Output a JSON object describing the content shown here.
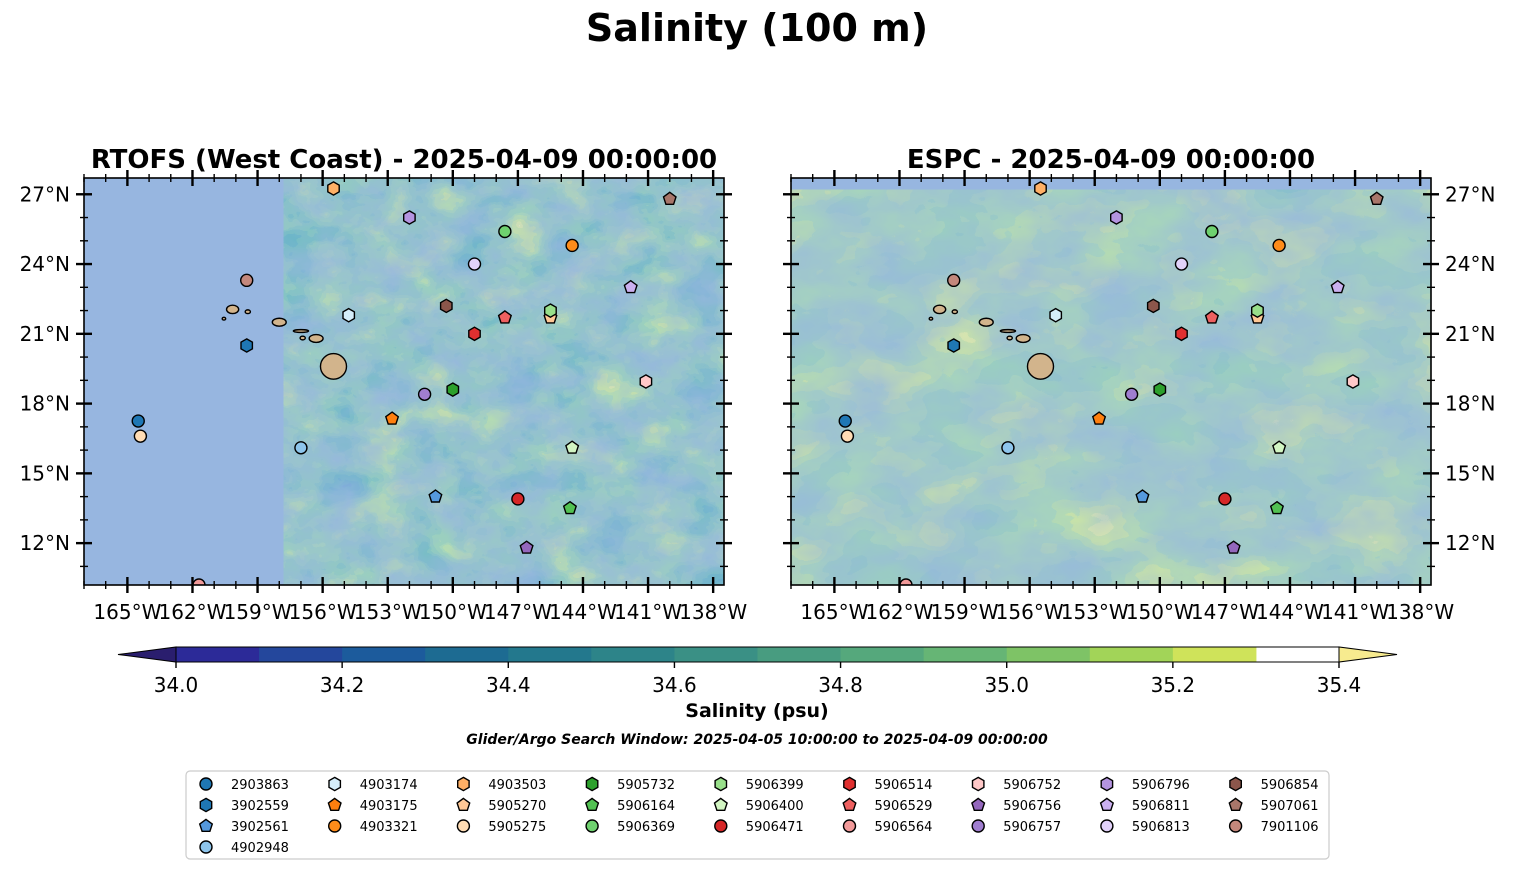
{
  "suptitle": "Salinity (100 m)",
  "search_window": "Glider/Argo Search Window: 2025-04-05 10:00:00 to 2025-04-09 00:00:00",
  "colorbar_label": "Salinity (psu)",
  "colors": {
    "land_mask": "#97b6e0",
    "island": "#d2b48c",
    "colormap": [
      "#2a1e6e",
      "#2c2a98",
      "#24479c",
      "#1c5b9c",
      "#1d6b92",
      "#23788d",
      "#2d8489",
      "#3a9085",
      "#489c80",
      "#55a87c",
      "#66b575",
      "#7ec366",
      "#a2d458",
      "#cfe35a",
      "#f7eb8f"
    ]
  },
  "chart_data": [
    {
      "type": "map",
      "title": "RTOFS (West Coast) - 2025-04-09 00:00:00",
      "variable": "Salinity (psu)",
      "xlim": [
        -167,
        -137.5
      ],
      "ylim": [
        10.2,
        27.7
      ],
      "x_ticks": [
        "165°W",
        "162°W",
        "159°W",
        "156°W",
        "153°W",
        "150°W",
        "147°W",
        "144°W",
        "141°W",
        "138°W"
      ],
      "x_tick_values": [
        -165,
        -162,
        -159,
        -156,
        -153,
        -150,
        -147,
        -144,
        -141,
        -138
      ],
      "y_ticks": [
        "12°N",
        "15°N",
        "18°N",
        "21°N",
        "24°N",
        "27°N"
      ],
      "y_tick_values": [
        12,
        15,
        18,
        21,
        24,
        27
      ],
      "y_tick_side": "left",
      "model_data_west_edge_lon": -157.8,
      "mean_salinity": 34.7
    },
    {
      "type": "map",
      "title": "ESPC - 2025-04-09 00:00:00",
      "variable": "Salinity (psu)",
      "xlim": [
        -167,
        -137.5
      ],
      "ylim": [
        10.2,
        27.7
      ],
      "x_ticks": [
        "165°W",
        "162°W",
        "159°W",
        "156°W",
        "153°W",
        "150°W",
        "147°W",
        "144°W",
        "141°W",
        "138°W"
      ],
      "x_tick_values": [
        -165,
        -162,
        -159,
        -156,
        -153,
        -150,
        -147,
        -144,
        -141,
        -138
      ],
      "y_ticks": [
        "12°N",
        "15°N",
        "18°N",
        "21°N",
        "24°N",
        "27°N"
      ],
      "y_tick_values": [
        12,
        15,
        18,
        21,
        24,
        27
      ],
      "y_tick_side": "right",
      "model_data_north_edge_lat": 27.2,
      "mean_salinity": 34.9
    }
  ],
  "colorbar": {
    "vmin": 33.9,
    "vmax": 35.5,
    "step": 0.1,
    "ticks": [
      34.0,
      34.2,
      34.4,
      34.6,
      34.8,
      35.0,
      35.2,
      35.4
    ],
    "tick_labels": [
      "34.0",
      "34.2",
      "34.4",
      "34.6",
      "34.8",
      "35.0",
      "35.2",
      "35.4"
    ],
    "extend": "both"
  },
  "floats": [
    {
      "id": "2903863",
      "marker": "circle",
      "color": "#1f77b4",
      "lon": -164.5,
      "lat": 17.25
    },
    {
      "id": "3902559",
      "marker": "hexagon",
      "color": "#1f77b4",
      "lon": -159.5,
      "lat": 20.5
    },
    {
      "id": "3902561",
      "marker": "pentagon",
      "color": "#5599dd",
      "lon": -150.8,
      "lat": 14.0
    },
    {
      "id": "4902948",
      "marker": "circle",
      "color": "#8ec5ec",
      "lon": -157.0,
      "lat": 16.1
    },
    {
      "id": "4903174",
      "marker": "hexagon",
      "color": "#d5eefa",
      "lon": -154.8,
      "lat": 21.8
    },
    {
      "id": "4903175",
      "marker": "pentagon",
      "color": "#ff7f0e",
      "lon": -152.8,
      "lat": 17.35
    },
    {
      "id": "4903321",
      "marker": "circle",
      "color": "#ff8c1a",
      "lon": -144.5,
      "lat": 24.8
    },
    {
      "id": "4903503",
      "marker": "hexagon",
      "color": "#ffb066",
      "lon": -155.5,
      "lat": 27.25
    },
    {
      "id": "5905270",
      "marker": "pentagon",
      "color": "#ffc896",
      "lon": -145.5,
      "lat": 21.7
    },
    {
      "id": "5905275",
      "marker": "circle",
      "color": "#ffdcb4",
      "lon": -164.4,
      "lat": 16.6
    },
    {
      "id": "5905732",
      "marker": "hexagon",
      "color": "#2ca02c",
      "lon": -150.0,
      "lat": 18.6
    },
    {
      "id": "5906164",
      "marker": "pentagon",
      "color": "#52c152",
      "lon": -144.6,
      "lat": 13.5
    },
    {
      "id": "5906369",
      "marker": "circle",
      "color": "#6fd16f",
      "lon": -147.6,
      "lat": 25.4
    },
    {
      "id": "5906399",
      "marker": "hexagon",
      "color": "#98df8a",
      "lon": -145.5,
      "lat": 22.0
    },
    {
      "id": "5906400",
      "marker": "pentagon",
      "color": "#d2f5c2",
      "lon": -144.5,
      "lat": 16.1
    },
    {
      "id": "5906471",
      "marker": "circle",
      "color": "#d62728",
      "lon": -147.0,
      "lat": 13.9
    },
    {
      "id": "5906514",
      "marker": "hexagon",
      "color": "#e03030",
      "lon": -149.0,
      "lat": 21.0
    },
    {
      "id": "5906529",
      "marker": "pentagon",
      "color": "#ee6060",
      "lon": -147.6,
      "lat": 21.7
    },
    {
      "id": "5906564",
      "marker": "circle",
      "color": "#f29a9a",
      "lon": -161.7,
      "lat": 10.2
    },
    {
      "id": "5906752",
      "marker": "hexagon",
      "color": "#ffc8c8",
      "lon": -141.1,
      "lat": 18.95
    },
    {
      "id": "5906756",
      "marker": "pentagon",
      "color": "#9467bd",
      "lon": -146.6,
      "lat": 11.8
    },
    {
      "id": "5906757",
      "marker": "circle",
      "color": "#a07ed0",
      "lon": -151.3,
      "lat": 18.4
    },
    {
      "id": "5906796",
      "marker": "hexagon",
      "color": "#b494e0",
      "lon": -152.0,
      "lat": 26.0
    },
    {
      "id": "5906811",
      "marker": "pentagon",
      "color": "#cbb0f0",
      "lon": -141.8,
      "lat": 23.0
    },
    {
      "id": "5906813",
      "marker": "circle",
      "color": "#e2d2fa",
      "lon": -149.0,
      "lat": 24.0
    },
    {
      "id": "5906854",
      "marker": "hexagon",
      "color": "#8c564b",
      "lon": -150.3,
      "lat": 22.2
    },
    {
      "id": "5907061",
      "marker": "pentagon",
      "color": "#a8766a",
      "lon": -140.0,
      "lat": 26.8
    },
    {
      "id": "7901106",
      "marker": "circle",
      "color": "#c4887c",
      "lon": -159.5,
      "lat": 23.3
    }
  ],
  "legend": {
    "ncol": 9,
    "entries": [
      "2903863",
      "3902559",
      "3902561",
      "4902948",
      "4903174",
      "4903175",
      "4903321",
      "4903503",
      "5905270",
      "5905275",
      "5905732",
      "5906164",
      "5906369",
      "5906399",
      "5906400",
      "5906471",
      "5906514",
      "5906529",
      "5906564",
      "5906752",
      "5906756",
      "5906757",
      "5906796",
      "5906811",
      "5906813",
      "5906854",
      "5907061",
      "7901106"
    ]
  }
}
